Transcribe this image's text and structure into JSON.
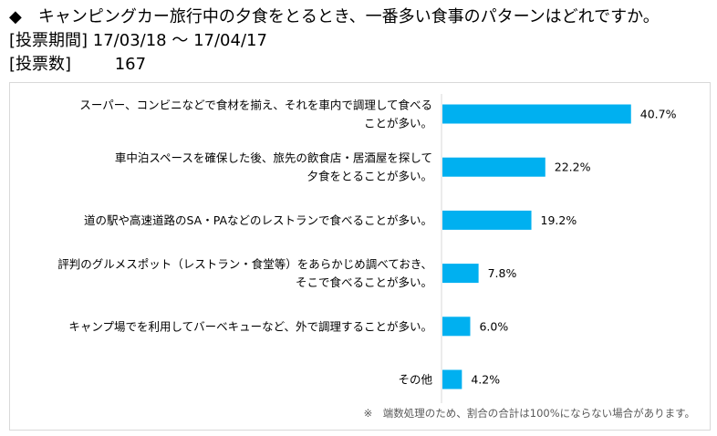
{
  "header": {
    "question": "◆　キャンピングカー旅行中の夕食をとるとき、一番多い食事のパターンはどれですか。",
    "period_label": "[投票期間]",
    "period_value": "17/03/18 ～ 17/04/17",
    "votes_label": "[投票数]",
    "votes_value": "167"
  },
  "chart_data": {
    "type": "bar",
    "orientation": "horizontal",
    "categories": [
      [
        "スーパー、コンビニなどで食材を揃え、それを車内で調理して食べる",
        "ことが多い。"
      ],
      [
        "車中泊スペースを確保した後、旅先の飲食店・居酒屋を探して",
        "夕食をとることが多い。"
      ],
      [
        "道の駅や高速道路のSA・PAなどのレストランで食べることが多い。"
      ],
      [
        "評判のグルメスポット（レストラン・食堂等）をあらかじめ調べておき、",
        "そこで食べることが多い。"
      ],
      [
        "キャンプ場でを利用してバーベキューなど、外で調理することが多い。"
      ],
      [
        "その他"
      ]
    ],
    "values": [
      40.7,
      22.2,
      19.2,
      7.8,
      6.0,
      4.2
    ],
    "value_labels": [
      "40.7%",
      "22.2%",
      "19.2%",
      "7.8%",
      "6.0%",
      "4.2%"
    ],
    "xlim": [
      0,
      100
    ],
    "bar_color": "#00b0f0",
    "axis_color": "#d9d9d9",
    "grid": false,
    "legend": "none"
  },
  "note": "※　端数処理のため、割合の合計は100%にならない場合があります。"
}
